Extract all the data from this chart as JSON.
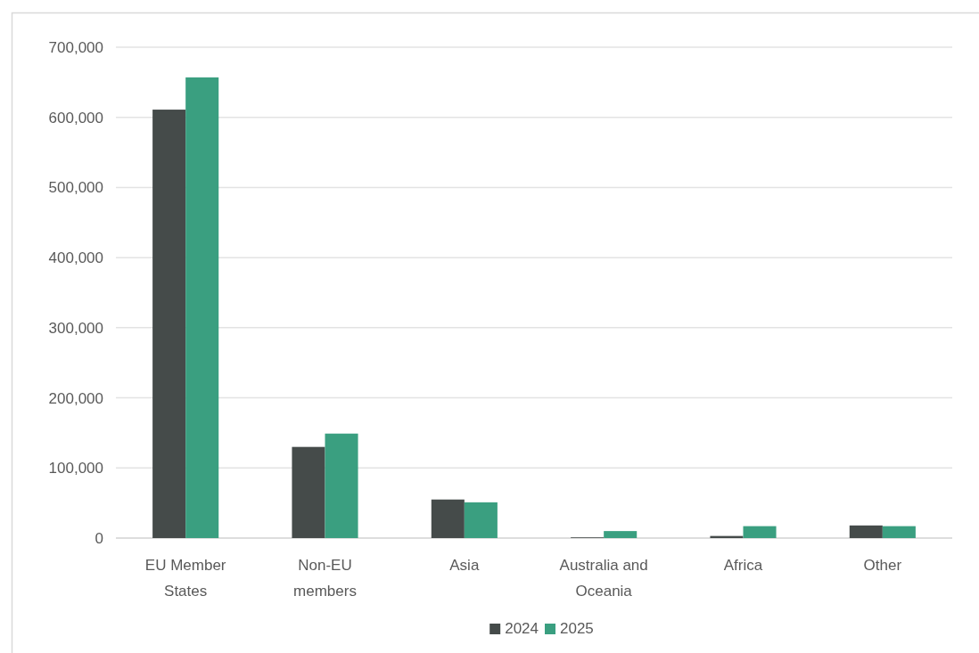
{
  "chart_data": {
    "type": "bar",
    "categories": [
      "EU Member States",
      "Non-EU members",
      "Asia",
      "Australia and Oceania",
      "Africa",
      "Other"
    ],
    "series": [
      {
        "name": "2024",
        "color": "#454b4a",
        "values": [
          611000,
          130000,
          55000,
          1000,
          3000,
          18000
        ]
      },
      {
        "name": "2025",
        "color": "#3a9f80",
        "values": [
          657000,
          149000,
          51000,
          10000,
          17000,
          17000
        ]
      }
    ],
    "ylim": [
      0,
      700000
    ],
    "yticks": [
      0,
      {
        "value": 100000,
        "label": "100,000"
      },
      {
        "value": 200000,
        "label": "200,000"
      },
      {
        "value": 300000,
        "label": "300,000"
      },
      {
        "value": 400000,
        "label": "400,000"
      },
      {
        "value": 500000,
        "label": "500,000"
      },
      {
        "value": 600000,
        "label": "600,000"
      },
      {
        "value": 700000,
        "label": "700,000"
      }
    ],
    "grid": "y",
    "legend": "bottom"
  }
}
